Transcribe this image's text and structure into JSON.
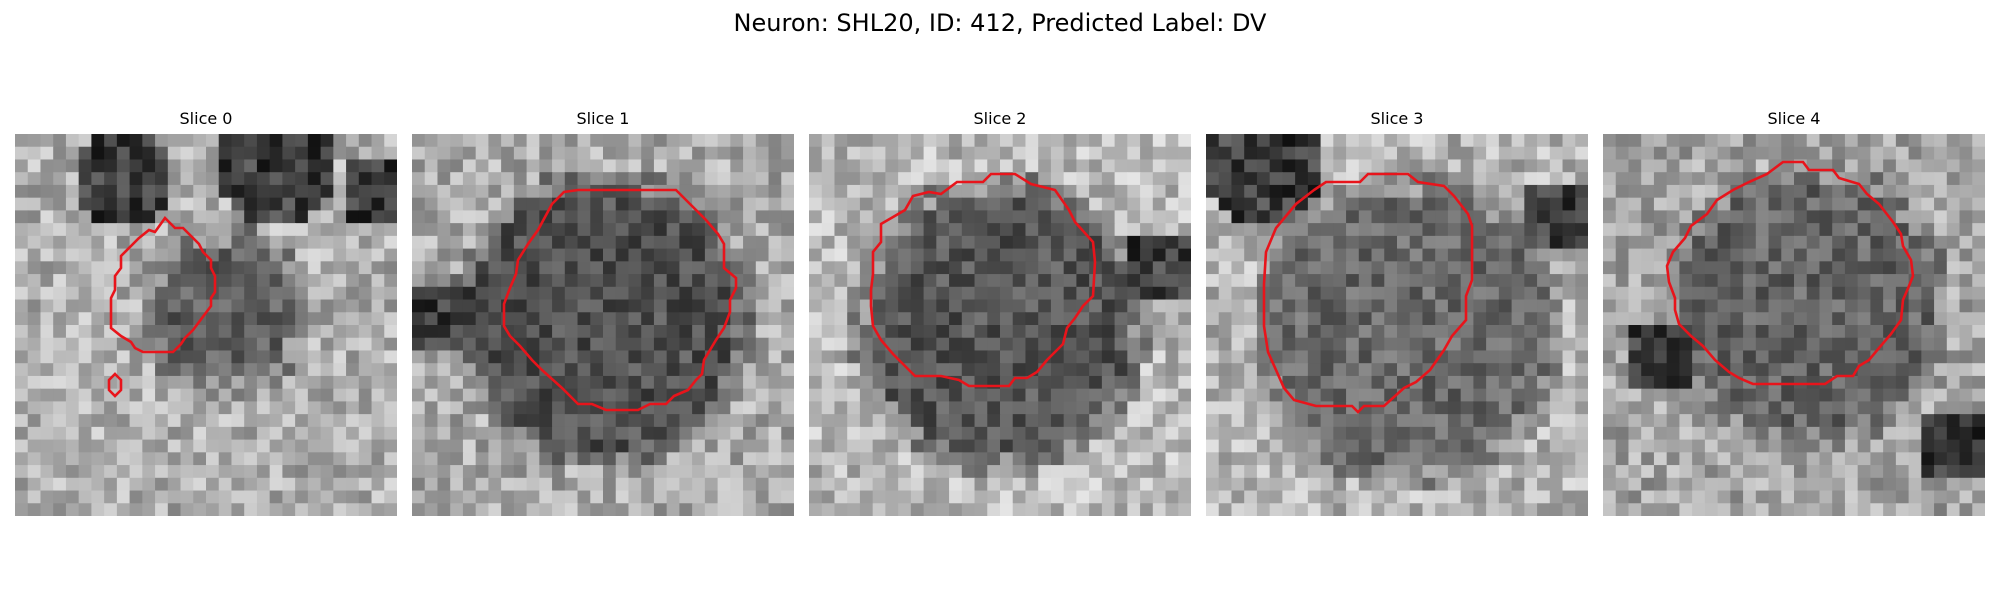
{
  "figure": {
    "title": "Neuron: SHL20, ID: 412, Predicted Label: DV"
  },
  "contour_color": "#e8141b",
  "panels": [
    {
      "title": "Slice 0",
      "image": "grayscale microscopy patch with small red contour around a dark cell body and a tiny red outline on the left"
    },
    {
      "title": "Slice 1",
      "image": "grayscale microscopy patch with large red contour around a dark cell body"
    },
    {
      "title": "Slice 2",
      "image": "grayscale microscopy patch with large red contour around a dark speckled cell body"
    },
    {
      "title": "Slice 3",
      "image": "grayscale microscopy patch with large red contour around a medium gray cell body"
    },
    {
      "title": "Slice 4",
      "image": "grayscale microscopy patch with large red contour around a speckled cell body"
    }
  ]
}
